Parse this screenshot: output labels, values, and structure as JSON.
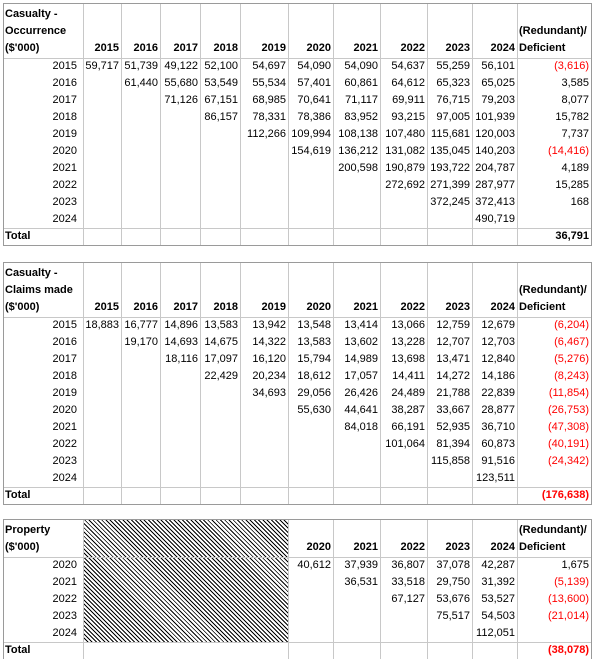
{
  "tables": [
    {
      "label": [
        "Casualty -",
        "Occurrence",
        "($'000)"
      ],
      "years": [
        "2015",
        "2016",
        "2017",
        "2018",
        "2019",
        "2020",
        "2021",
        "2022",
        "2023",
        "2024"
      ],
      "deficient_header": [
        "(Redundant)/",
        "Deficient"
      ],
      "rows": [
        {
          "year": "2015",
          "values": [
            "59,717",
            "51,739",
            "49,122",
            "52,100",
            "54,697",
            "54,090",
            "54,090",
            "54,637",
            "55,259",
            "56,101"
          ],
          "deficient": "(3,616)"
        },
        {
          "year": "2016",
          "values": [
            null,
            "61,440",
            "55,680",
            "53,549",
            "55,534",
            "57,401",
            "60,861",
            "64,612",
            "65,323",
            "65,025"
          ],
          "deficient": "3,585"
        },
        {
          "year": "2017",
          "values": [
            null,
            null,
            "71,126",
            "67,151",
            "68,985",
            "70,641",
            "71,117",
            "69,911",
            "76,715",
            "79,203"
          ],
          "deficient": "8,077"
        },
        {
          "year": "2018",
          "values": [
            null,
            null,
            null,
            "86,157",
            "78,331",
            "78,386",
            "83,952",
            "93,215",
            "97,005",
            "101,939"
          ],
          "deficient": "15,782"
        },
        {
          "year": "2019",
          "values": [
            null,
            null,
            null,
            null,
            "112,266",
            "109,994",
            "108,138",
            "107,480",
            "115,681",
            "120,003"
          ],
          "deficient": "7,737"
        },
        {
          "year": "2020",
          "values": [
            null,
            null,
            null,
            null,
            null,
            "154,619",
            "136,212",
            "131,082",
            "135,045",
            "140,203"
          ],
          "deficient": "(14,416)"
        },
        {
          "year": "2021",
          "values": [
            null,
            null,
            null,
            null,
            null,
            null,
            "200,598",
            "190,879",
            "193,722",
            "204,787"
          ],
          "deficient": "4,189"
        },
        {
          "year": "2022",
          "values": [
            null,
            null,
            null,
            null,
            null,
            null,
            null,
            "272,692",
            "271,399",
            "287,977"
          ],
          "deficient": "15,285"
        },
        {
          "year": "2023",
          "values": [
            null,
            null,
            null,
            null,
            null,
            null,
            null,
            null,
            "372,245",
            "372,413"
          ],
          "deficient": "168"
        },
        {
          "year": "2024",
          "values": [
            null,
            null,
            null,
            null,
            null,
            null,
            null,
            null,
            null,
            "490,719"
          ],
          "deficient": null
        }
      ],
      "total_label": "Total",
      "total": "36,791"
    },
    {
      "label": [
        "Casualty -",
        "Claims made",
        "($'000)"
      ],
      "years": [
        "2015",
        "2016",
        "2017",
        "2018",
        "2019",
        "2020",
        "2021",
        "2022",
        "2023",
        "2024"
      ],
      "deficient_header": [
        "(Redundant)/",
        "Deficient"
      ],
      "rows": [
        {
          "year": "2015",
          "values": [
            "18,883",
            "16,777",
            "14,896",
            "13,583",
            "13,942",
            "13,548",
            "13,414",
            "13,066",
            "12,759",
            "12,679"
          ],
          "deficient": "(6,204)"
        },
        {
          "year": "2016",
          "values": [
            null,
            "19,170",
            "14,693",
            "14,675",
            "14,322",
            "13,583",
            "13,602",
            "13,228",
            "12,707",
            "12,703"
          ],
          "deficient": "(6,467)"
        },
        {
          "year": "2017",
          "values": [
            null,
            null,
            "18,116",
            "17,097",
            "16,120",
            "15,794",
            "14,989",
            "13,698",
            "13,471",
            "12,840"
          ],
          "deficient": "(5,276)"
        },
        {
          "year": "2018",
          "values": [
            null,
            null,
            null,
            "22,429",
            "20,234",
            "18,612",
            "17,057",
            "14,411",
            "14,272",
            "14,186"
          ],
          "deficient": "(8,243)"
        },
        {
          "year": "2019",
          "values": [
            null,
            null,
            null,
            null,
            "34,693",
            "29,056",
            "26,426",
            "24,489",
            "21,788",
            "22,839"
          ],
          "deficient": "(11,854)"
        },
        {
          "year": "2020",
          "values": [
            null,
            null,
            null,
            null,
            null,
            "55,630",
            "44,641",
            "38,287",
            "33,667",
            "28,877"
          ],
          "deficient": "(26,753)"
        },
        {
          "year": "2021",
          "values": [
            null,
            null,
            null,
            null,
            null,
            null,
            "84,018",
            "66,191",
            "52,935",
            "36,710"
          ],
          "deficient": "(47,308)"
        },
        {
          "year": "2022",
          "values": [
            null,
            null,
            null,
            null,
            null,
            null,
            null,
            "101,064",
            "81,394",
            "60,873"
          ],
          "deficient": "(40,191)"
        },
        {
          "year": "2023",
          "values": [
            null,
            null,
            null,
            null,
            null,
            null,
            null,
            null,
            "115,858",
            "91,516"
          ],
          "deficient": "(24,342)"
        },
        {
          "year": "2024",
          "values": [
            null,
            null,
            null,
            null,
            null,
            null,
            null,
            null,
            null,
            "123,511"
          ],
          "deficient": null
        }
      ],
      "total_label": "Total",
      "total": "(176,638)"
    },
    {
      "label": [
        "Property",
        "($'000)"
      ],
      "years": [
        "2020",
        "2021",
        "2022",
        "2023",
        "2024"
      ],
      "deficient_header": [
        "(Redundant)/",
        "Deficient"
      ],
      "rows": [
        {
          "year": "2020",
          "values": [
            "40,612",
            "37,939",
            "36,807",
            "37,078",
            "42,287"
          ],
          "deficient": "1,675"
        },
        {
          "year": "2021",
          "values": [
            null,
            "36,531",
            "33,518",
            "29,750",
            "31,392"
          ],
          "deficient": "(5,139)"
        },
        {
          "year": "2022",
          "values": [
            null,
            null,
            "67,127",
            "53,676",
            "53,527"
          ],
          "deficient": "(13,600)"
        },
        {
          "year": "2023",
          "values": [
            null,
            null,
            null,
            "75,517",
            "54,503"
          ],
          "deficient": "(21,014)"
        },
        {
          "year": "2024",
          "values": [
            null,
            null,
            null,
            null,
            "112,051"
          ],
          "deficient": null
        }
      ],
      "total_label": "Total",
      "total": "(38,078)"
    }
  ]
}
